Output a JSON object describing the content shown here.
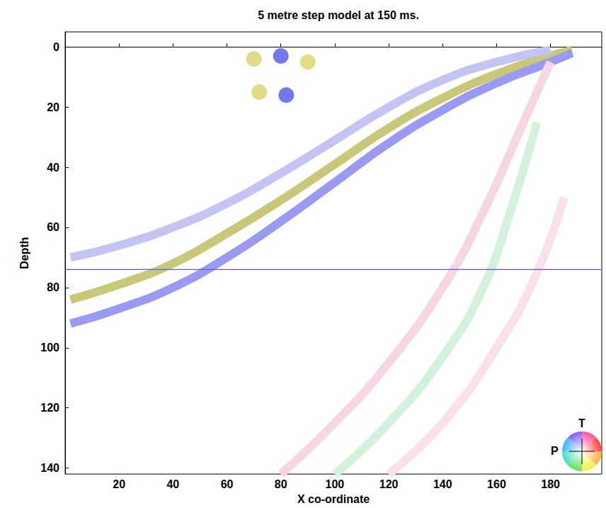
{
  "chart_data": {
    "type": "line",
    "title": "5 metre step model at 150 ms.",
    "x_label": "X co-ordinate",
    "y_label": "Depth",
    "xlim": [
      0,
      199
    ],
    "xticks": [
      20,
      40,
      60,
      80,
      100,
      120,
      140,
      160,
      180
    ],
    "ylim": [
      -5,
      142
    ],
    "yticks": [
      0,
      20,
      40,
      60,
      80,
      100,
      120,
      140
    ],
    "grid": false,
    "annotations": [
      {
        "text": "T"
      },
      {
        "text": "P"
      }
    ],
    "series": [
      {
        "type": "line",
        "color": "#c8c878",
        "line_style": "solid",
        "x": [
          2,
          20,
          40,
          60,
          80,
          100,
          120,
          140,
          160,
          180,
          188
        ],
        "values": [
          84,
          79,
          72,
          62,
          51,
          39,
          27,
          17,
          9,
          3,
          1
        ]
      },
      {
        "type": "line",
        "color": "#9a9af2",
        "line_style": "solid",
        "x": [
          2,
          20,
          40,
          60,
          80,
          100,
          120,
          140,
          160,
          180,
          188
        ],
        "values": [
          92,
          87,
          80,
          70,
          58,
          45,
          32,
          21,
          12,
          5,
          2
        ]
      },
      {
        "type": "line",
        "color": "#c4c4f4",
        "line_style": "solid",
        "x": [
          2,
          20,
          40,
          60,
          80,
          100,
          120,
          140,
          160,
          180
        ],
        "values": [
          70,
          66,
          60,
          52,
          42,
          31,
          20,
          11,
          5,
          1
        ]
      },
      {
        "type": "line",
        "color": "#f7d6e4",
        "line_style": "solid",
        "x": [
          80,
          100,
          120,
          140,
          155,
          170,
          180
        ],
        "values": [
          142,
          125,
          105,
          80,
          55,
          25,
          5
        ]
      },
      {
        "type": "line",
        "color": "#d2f2dc",
        "line_style": "solid",
        "x": [
          100,
          120,
          140,
          155,
          165,
          175
        ],
        "values": [
          142,
          125,
          103,
          80,
          55,
          25
        ]
      },
      {
        "type": "line",
        "color": "#f9e0ea",
        "line_style": "solid",
        "x": [
          120,
          140,
          160,
          175,
          185
        ],
        "values": [
          142,
          125,
          100,
          75,
          50
        ]
      },
      {
        "type": "line",
        "color": "#5a5af0",
        "line_style": "solid",
        "x": [
          0,
          199
        ],
        "values": [
          74,
          74
        ]
      },
      {
        "type": "scatter",
        "color": "#d8d060",
        "marker": "circle",
        "x": [
          70,
          72,
          90
        ],
        "values": [
          4,
          15,
          5
        ]
      },
      {
        "type": "scatter",
        "color": "#4848e8",
        "marker": "circle",
        "x": [
          80,
          82
        ],
        "values": [
          3,
          16
        ]
      }
    ]
  }
}
